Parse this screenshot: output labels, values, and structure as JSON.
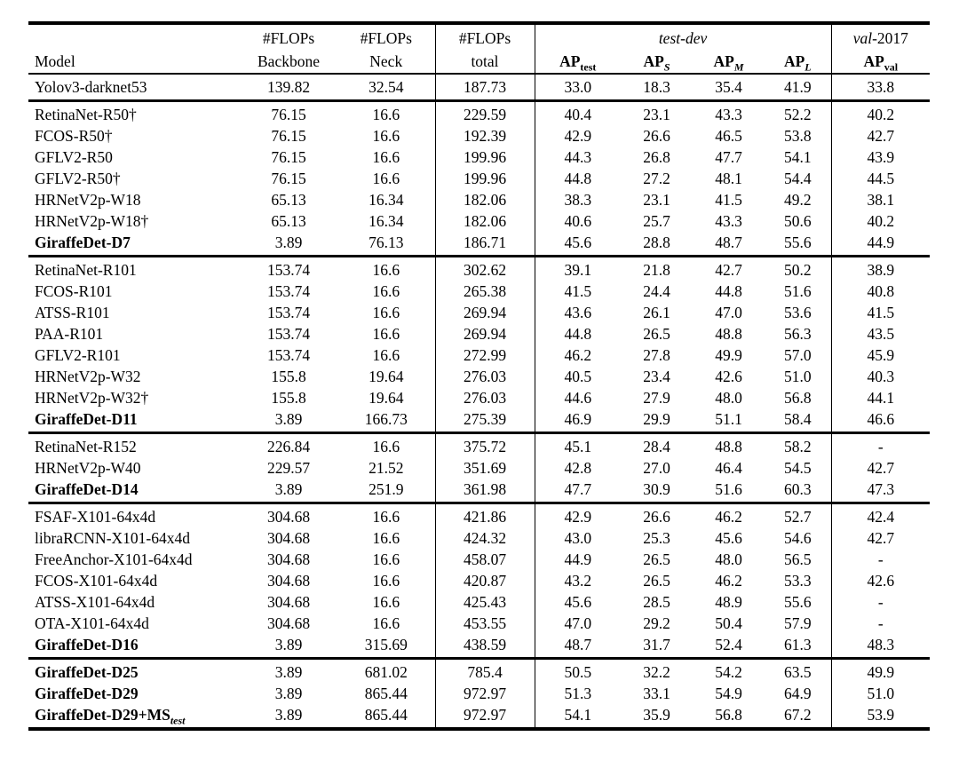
{
  "table": {
    "header": {
      "model": "Model",
      "flops": "#FLOPs",
      "backbone": "Backbone",
      "neck": "Neck",
      "total": "total",
      "test_dev": "test-dev",
      "val_word": "val",
      "val_year": "-2017",
      "ap": "AP",
      "sub_test": "test",
      "sub_s": "S",
      "sub_m": "M",
      "sub_l": "L",
      "sub_val": "val"
    },
    "groups": [
      {
        "rows": [
          {
            "model": "Yolov3-darknet53",
            "bold": false,
            "backbone": "139.82",
            "neck": "32.54",
            "total": "187.73",
            "ap_test": "33.0",
            "ap_s": "18.3",
            "ap_m": "35.4",
            "ap_l": "41.9",
            "ap_val": "33.8"
          }
        ]
      },
      {
        "rows": [
          {
            "model": "RetinaNet-R50†",
            "bold": false,
            "backbone": "76.15",
            "neck": "16.6",
            "total": "229.59",
            "ap_test": "40.4",
            "ap_s": "23.1",
            "ap_m": "43.3",
            "ap_l": "52.2",
            "ap_val": "40.2"
          },
          {
            "model": "FCOS-R50†",
            "bold": false,
            "backbone": "76.15",
            "neck": "16.6",
            "total": "192.39",
            "ap_test": "42.9",
            "ap_s": "26.6",
            "ap_m": "46.5",
            "ap_l": "53.8",
            "ap_val": "42.7"
          },
          {
            "model": "GFLV2-R50",
            "bold": false,
            "backbone": "76.15",
            "neck": "16.6",
            "total": "199.96",
            "ap_test": "44.3",
            "ap_s": "26.8",
            "ap_m": "47.7",
            "ap_l": "54.1",
            "ap_val": "43.9"
          },
          {
            "model": "GFLV2-R50†",
            "bold": false,
            "backbone": "76.15",
            "neck": "16.6",
            "total": "199.96",
            "ap_test": "44.8",
            "ap_s": "27.2",
            "ap_m": "48.1",
            "ap_l": "54.4",
            "ap_val": "44.5"
          },
          {
            "model": "HRNetV2p-W18",
            "bold": false,
            "backbone": "65.13",
            "neck": "16.34",
            "total": "182.06",
            "ap_test": "38.3",
            "ap_s": "23.1",
            "ap_m": "41.5",
            "ap_l": "49.2",
            "ap_val": "38.1"
          },
          {
            "model": "HRNetV2p-W18†",
            "bold": false,
            "backbone": "65.13",
            "neck": "16.34",
            "total": "182.06",
            "ap_test": "40.6",
            "ap_s": "25.7",
            "ap_m": "43.3",
            "ap_l": "50.6",
            "ap_val": "40.2"
          },
          {
            "model": "GiraffeDet-D7",
            "bold": true,
            "backbone": "3.89",
            "neck": "76.13",
            "total": "186.71",
            "ap_test": "45.6",
            "ap_s": "28.8",
            "ap_m": "48.7",
            "ap_l": "55.6",
            "ap_val": "44.9"
          }
        ]
      },
      {
        "rows": [
          {
            "model": "RetinaNet-R101",
            "bold": false,
            "backbone": "153.74",
            "neck": "16.6",
            "total": "302.62",
            "ap_test": "39.1",
            "ap_s": "21.8",
            "ap_m": "42.7",
            "ap_l": "50.2",
            "ap_val": "38.9"
          },
          {
            "model": "FCOS-R101",
            "bold": false,
            "backbone": "153.74",
            "neck": "16.6",
            "total": "265.38",
            "ap_test": "41.5",
            "ap_s": "24.4",
            "ap_m": "44.8",
            "ap_l": "51.6",
            "ap_val": "40.8"
          },
          {
            "model": "ATSS-R101",
            "bold": false,
            "backbone": "153.74",
            "neck": "16.6",
            "total": "269.94",
            "ap_test": "43.6",
            "ap_s": "26.1",
            "ap_m": "47.0",
            "ap_l": "53.6",
            "ap_val": "41.5"
          },
          {
            "model": "PAA-R101",
            "bold": false,
            "backbone": "153.74",
            "neck": "16.6",
            "total": "269.94",
            "ap_test": "44.8",
            "ap_s": "26.5",
            "ap_m": "48.8",
            "ap_l": "56.3",
            "ap_val": "43.5"
          },
          {
            "model": "GFLV2-R101",
            "bold": false,
            "backbone": "153.74",
            "neck": "16.6",
            "total": "272.99",
            "ap_test": "46.2",
            "ap_s": "27.8",
            "ap_m": "49.9",
            "ap_l": "57.0",
            "ap_val": "45.9"
          },
          {
            "model": "HRNetV2p-W32",
            "bold": false,
            "backbone": "155.8",
            "neck": "19.64",
            "total": "276.03",
            "ap_test": "40.5",
            "ap_s": "23.4",
            "ap_m": "42.6",
            "ap_l": "51.0",
            "ap_val": "40.3"
          },
          {
            "model": "HRNetV2p-W32†",
            "bold": false,
            "backbone": "155.8",
            "neck": "19.64",
            "total": "276.03",
            "ap_test": "44.6",
            "ap_s": "27.9",
            "ap_m": "48.0",
            "ap_l": "56.8",
            "ap_val": "44.1"
          },
          {
            "model": "GiraffeDet-D11",
            "bold": true,
            "backbone": "3.89",
            "neck": "166.73",
            "total": "275.39",
            "ap_test": "46.9",
            "ap_s": "29.9",
            "ap_m": "51.1",
            "ap_l": "58.4",
            "ap_val": "46.6"
          }
        ]
      },
      {
        "rows": [
          {
            "model": "RetinaNet-R152",
            "bold": false,
            "backbone": "226.84",
            "neck": "16.6",
            "total": "375.72",
            "ap_test": "45.1",
            "ap_s": "28.4",
            "ap_m": "48.8",
            "ap_l": "58.2",
            "ap_val": "-"
          },
          {
            "model": "HRNetV2p-W40",
            "bold": false,
            "backbone": "229.57",
            "neck": "21.52",
            "total": "351.69",
            "ap_test": "42.8",
            "ap_s": "27.0",
            "ap_m": "46.4",
            "ap_l": "54.5",
            "ap_val": "42.7"
          },
          {
            "model": "GiraffeDet-D14",
            "bold": true,
            "backbone": "3.89",
            "neck": "251.9",
            "total": "361.98",
            "ap_test": "47.7",
            "ap_s": "30.9",
            "ap_m": "51.6",
            "ap_l": "60.3",
            "ap_val": "47.3"
          }
        ]
      },
      {
        "rows": [
          {
            "model": "FSAF-X101-64x4d",
            "bold": false,
            "backbone": "304.68",
            "neck": "16.6",
            "total": "421.86",
            "ap_test": "42.9",
            "ap_s": "26.6",
            "ap_m": "46.2",
            "ap_l": "52.7",
            "ap_val": "42.4"
          },
          {
            "model": "libraRCNN-X101-64x4d",
            "bold": false,
            "backbone": "304.68",
            "neck": "16.6",
            "total": "424.32",
            "ap_test": "43.0",
            "ap_s": "25.3",
            "ap_m": "45.6",
            "ap_l": "54.6",
            "ap_val": "42.7"
          },
          {
            "model": "FreeAnchor-X101-64x4d",
            "bold": false,
            "backbone": "304.68",
            "neck": "16.6",
            "total": "458.07",
            "ap_test": "44.9",
            "ap_s": "26.5",
            "ap_m": "48.0",
            "ap_l": "56.5",
            "ap_val": "-"
          },
          {
            "model": "FCOS-X101-64x4d",
            "bold": false,
            "backbone": "304.68",
            "neck": "16.6",
            "total": "420.87",
            "ap_test": "43.2",
            "ap_s": "26.5",
            "ap_m": "46.2",
            "ap_l": "53.3",
            "ap_val": "42.6"
          },
          {
            "model": "ATSS-X101-64x4d",
            "bold": false,
            "backbone": "304.68",
            "neck": "16.6",
            "total": "425.43",
            "ap_test": "45.6",
            "ap_s": "28.5",
            "ap_m": "48.9",
            "ap_l": "55.6",
            "ap_val": "-"
          },
          {
            "model": "OTA-X101-64x4d",
            "bold": false,
            "backbone": "304.68",
            "neck": "16.6",
            "total": "453.55",
            "ap_test": "47.0",
            "ap_s": "29.2",
            "ap_m": "50.4",
            "ap_l": "57.9",
            "ap_val": "-"
          },
          {
            "model": "GiraffeDet-D16",
            "bold": true,
            "backbone": "3.89",
            "neck": "315.69",
            "total": "438.59",
            "ap_test": "48.7",
            "ap_s": "31.7",
            "ap_m": "52.4",
            "ap_l": "61.3",
            "ap_val": "48.3"
          }
        ]
      },
      {
        "rows": [
          {
            "model": "GiraffeDet-D25",
            "bold": true,
            "backbone": "3.89",
            "neck": "681.02",
            "total": "785.4",
            "ap_test": "50.5",
            "ap_s": "32.2",
            "ap_m": "54.2",
            "ap_l": "63.5",
            "ap_val": "49.9"
          },
          {
            "model": "GiraffeDet-D29",
            "bold": true,
            "backbone": "3.89",
            "neck": "865.44",
            "total": "972.97",
            "ap_test": "51.3",
            "ap_s": "33.1",
            "ap_m": "54.9",
            "ap_l": "64.9",
            "ap_val": "51.0"
          },
          {
            "model": "GiraffeDet-D29+MS",
            "model_sub": "test",
            "bold": true,
            "backbone": "3.89",
            "neck": "865.44",
            "total": "972.97",
            "ap_test": "54.1",
            "ap_s": "35.9",
            "ap_m": "56.8",
            "ap_l": "67.2",
            "ap_val": "53.9"
          }
        ]
      }
    ]
  }
}
